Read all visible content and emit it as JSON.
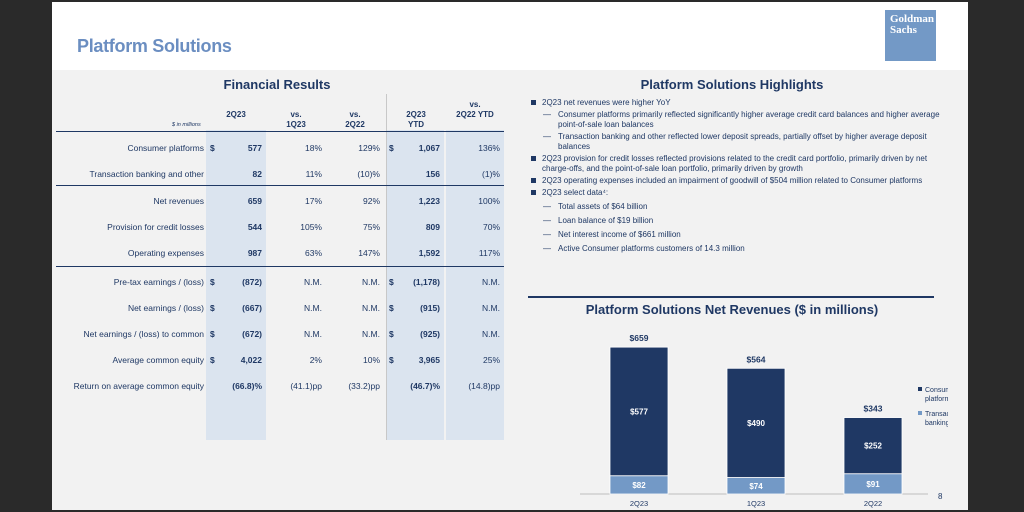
{
  "page": {
    "title": "Platform Solutions",
    "logo_line1": "Goldman",
    "logo_line2": "Sachs",
    "page_number": "8"
  },
  "financial_results": {
    "title": "Financial Results",
    "units": "$ in millions",
    "headers": [
      {
        "l1": "",
        "l2": "2Q23"
      },
      {
        "l1": "vs.",
        "l2": "1Q23"
      },
      {
        "l1": "vs.",
        "l2": "2Q22"
      },
      {
        "l1": "2Q23",
        "l2": "YTD"
      },
      {
        "l1": "vs.",
        "l2": "2Q22 YTD"
      }
    ],
    "rows": [
      {
        "label": "Consumer platforms",
        "d1": "$",
        "v1": "577",
        "v2": "18%",
        "v3": "129%",
        "d4": "$",
        "v4": "1,067",
        "v5": "136%"
      },
      {
        "label": "Transaction banking and other",
        "d1": "",
        "v1": "82",
        "v2": "11%",
        "v3": "(10)%",
        "d4": "",
        "v4": "156",
        "v5": "(1)%"
      },
      {
        "label": "Net revenues",
        "d1": "",
        "v1": "659",
        "v2": "17%",
        "v3": "92%",
        "d4": "",
        "v4": "1,223",
        "v5": "100%"
      },
      {
        "label": "Provision for credit losses",
        "d1": "",
        "v1": "544",
        "v2": "105%",
        "v3": "75%",
        "d4": "",
        "v4": "809",
        "v5": "70%"
      },
      {
        "label": "Operating expenses",
        "d1": "",
        "v1": "987",
        "v2": "63%",
        "v3": "147%",
        "d4": "",
        "v4": "1,592",
        "v5": "117%"
      },
      {
        "label": "Pre-tax earnings / (loss)",
        "d1": "$",
        "v1": "(872)",
        "v2": "N.M.",
        "v3": "N.M.",
        "d4": "$",
        "v4": "(1,178)",
        "v5": "N.M."
      },
      {
        "label": "Net earnings / (loss)",
        "d1": "$",
        "v1": "(667)",
        "v2": "N.M.",
        "v3": "N.M.",
        "d4": "$",
        "v4": "(915)",
        "v5": "N.M."
      },
      {
        "label": "Net earnings / (loss) to common",
        "d1": "$",
        "v1": "(672)",
        "v2": "N.M.",
        "v3": "N.M.",
        "d4": "$",
        "v4": "(925)",
        "v5": "N.M."
      },
      {
        "label": "Average common equity",
        "d1": "$",
        "v1": "4,022",
        "v2": "2%",
        "v3": "10%",
        "d4": "$",
        "v4": "3,965",
        "v5": "25%"
      },
      {
        "label": "Return on average common equity",
        "d1": "",
        "v1": "(66.8)%",
        "v2": "(41.1)pp",
        "v3": "(33.2)pp",
        "d4": "",
        "v4": "(46.7)%",
        "v5": "(14.8)pp"
      }
    ]
  },
  "highlights": {
    "title": "Platform Solutions Highlights",
    "b1": "2Q23 net revenues were higher YoY",
    "b1s1": "Consumer platforms primarily reflected significantly higher average credit card balances and higher average point-of-sale loan balances",
    "b1s2": "Transaction banking and other reflected lower deposit spreads, partially offset by higher average deposit balances",
    "b2": "2Q23 provision for credit losses reflected provisions related to the credit card portfolio, primarily driven by net charge-offs, and the point-of-sale loan portfolio, primarily driven by growth",
    "b3": "2Q23 operating expenses included an impairment of goodwill of $504 million related to Consumer platforms",
    "b4": "2Q23 select data⁴:",
    "b4s1": "Total assets of $64 billion",
    "b4s2": "Loan balance of $19 billion",
    "b4s3": "Net interest income of $661 million",
    "b4s4": "Active Consumer platforms customers of 14.3 million",
    "dash": "—"
  },
  "chart_title": "Platform Solutions Net Revenues ($ in millions)",
  "chart_data": {
    "type": "bar",
    "stacked": true,
    "categories": [
      "2Q23",
      "1Q23",
      "2Q22"
    ],
    "series": [
      {
        "name": "Transaction banking and other",
        "values": [
          82,
          74,
          91
        ],
        "labels": [
          "$82",
          "$74",
          "$91"
        ],
        "color": "#7399c6"
      },
      {
        "name": "Consumer platforms",
        "values": [
          577,
          490,
          252
        ],
        "labels": [
          "$577",
          "$490",
          "$252"
        ],
        "color": "#1f3864"
      }
    ],
    "totals": [
      659,
      564,
      343
    ],
    "total_labels": [
      "$659",
      "$564",
      "$343"
    ],
    "legend": [
      {
        "line1": "Consumer",
        "line2": "platforms"
      },
      {
        "line1": "Transaction",
        "line2": "banking and other"
      }
    ],
    "legend_position": "right",
    "ylim": [
      0,
      700
    ]
  }
}
